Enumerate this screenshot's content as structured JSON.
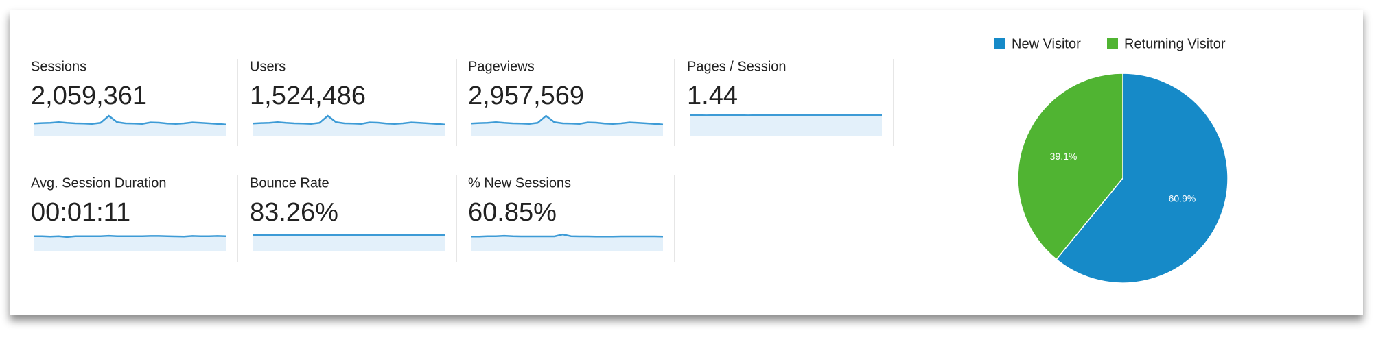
{
  "metrics": [
    {
      "label": "Sessions",
      "value": "2,059,361",
      "sparkline": [
        52,
        54,
        55,
        58,
        55,
        53,
        52,
        51,
        55,
        85,
        58,
        53,
        52,
        51,
        57,
        56,
        52,
        51,
        53,
        57,
        55,
        53,
        51,
        48
      ]
    },
    {
      "label": "Users",
      "value": "1,524,486",
      "sparkline": [
        52,
        54,
        55,
        58,
        55,
        53,
        52,
        51,
        55,
        85,
        58,
        53,
        52,
        51,
        57,
        56,
        52,
        51,
        53,
        57,
        55,
        53,
        51,
        48
      ]
    },
    {
      "label": "Pageviews",
      "value": "2,957,569",
      "sparkline": [
        52,
        54,
        55,
        58,
        55,
        53,
        52,
        51,
        55,
        85,
        58,
        53,
        52,
        51,
        57,
        56,
        52,
        51,
        53,
        57,
        55,
        53,
        51,
        48
      ]
    },
    {
      "label": "Pages / Session",
      "value": "1.44",
      "sparkline": [
        88,
        88,
        87,
        88,
        88,
        88,
        88,
        87,
        88,
        88,
        88,
        88,
        88,
        88,
        88,
        88,
        88,
        88,
        88,
        88,
        88,
        88,
        88,
        88
      ]
    },
    {
      "label": "Avg. Session Duration",
      "value": "00:01:11",
      "sparkline": [
        72,
        72,
        70,
        72,
        68,
        72,
        72,
        72,
        72,
        74,
        72,
        72,
        72,
        72,
        73,
        73,
        72,
        71,
        70,
        73,
        72,
        72,
        73,
        72
      ]
    },
    {
      "label": "Bounce Rate",
      "value": "83.26%",
      "sparkline": [
        78,
        78,
        78,
        78,
        77,
        77,
        77,
        77,
        77,
        77,
        77,
        77,
        77,
        77,
        77,
        77,
        77,
        77,
        77,
        77,
        77,
        77,
        77,
        77
      ]
    },
    {
      "label": "% New Sessions",
      "value": "60.85%",
      "sparkline": [
        70,
        70,
        72,
        72,
        74,
        72,
        71,
        71,
        71,
        71,
        71,
        80,
        72,
        71,
        71,
        70,
        70,
        70,
        71,
        71,
        71,
        71,
        71,
        70
      ]
    }
  ],
  "sparkline_ylim": [
    0,
    100
  ],
  "sparkline_color": "#3d9bd6",
  "chart_data": {
    "type": "pie",
    "categories": [
      "New Visitor",
      "Returning Visitor"
    ],
    "values": [
      60.9,
      39.1
    ],
    "value_labels": [
      "60.9%",
      "39.1%"
    ],
    "colors": [
      "#168ac8",
      "#50b432"
    ],
    "legend": "top"
  }
}
